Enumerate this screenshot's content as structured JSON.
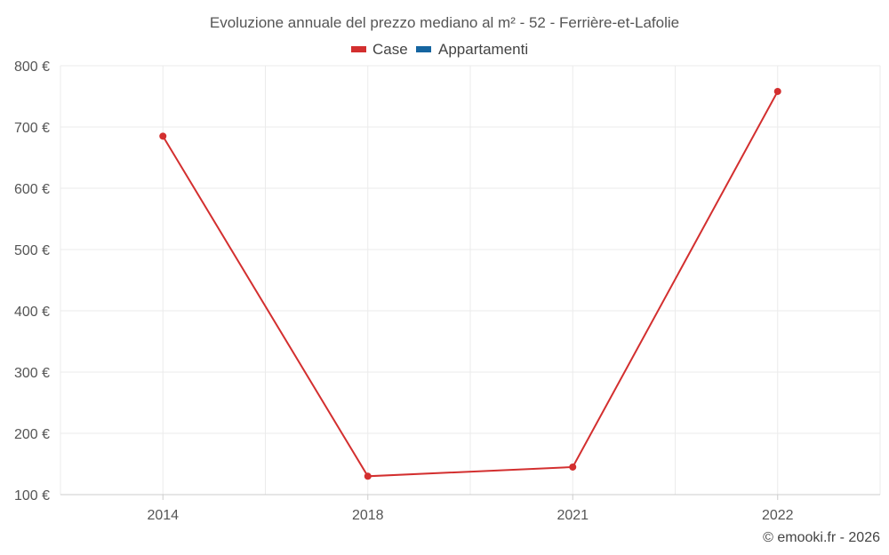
{
  "chart_data": {
    "type": "line",
    "title": "Evoluzione annuale del prezzo mediano al m² - 52 - Ferrière-et-Lafolie",
    "categories": [
      "2014",
      "2018",
      "2021",
      "2022"
    ],
    "series": [
      {
        "name": "Case",
        "color": "#d32f2f",
        "values": [
          685,
          130,
          145,
          758
        ]
      },
      {
        "name": "Appartamenti",
        "color": "#1565a0",
        "values": [
          null,
          null,
          null,
          null
        ]
      }
    ],
    "y_ticks": [
      100,
      200,
      300,
      400,
      500,
      600,
      700,
      800
    ],
    "y_tick_labels": [
      "100 €",
      "200 €",
      "300 €",
      "400 €",
      "500 €",
      "600 €",
      "700 €",
      "800 €"
    ],
    "ylim": [
      100,
      800
    ],
    "xlabel": "",
    "ylabel": "",
    "grid": true,
    "legend_position": "top-center"
  },
  "credit": "© emooki.fr - 2026"
}
